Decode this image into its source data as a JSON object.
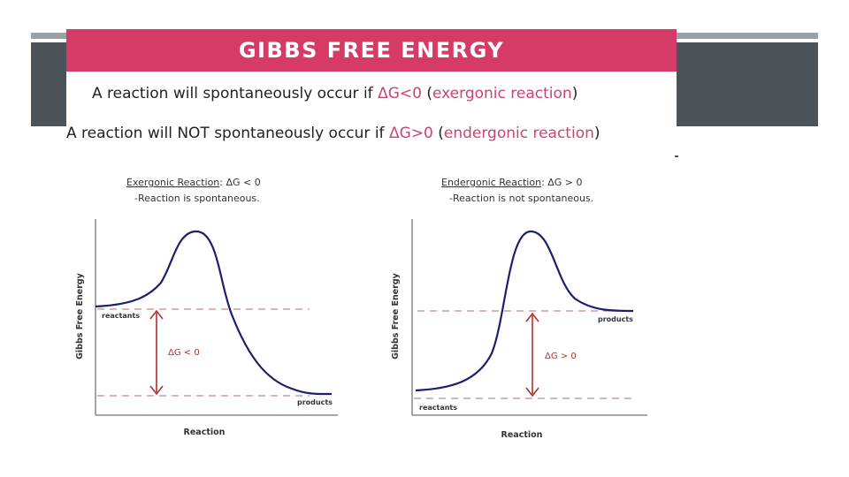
{
  "slide": {
    "title": "GIBBS FREE ENERGY",
    "line1": {
      "pre": "A reaction will spontaneously occur if ",
      "condition": "ΔG<0",
      "open": " (",
      "type": "exergonic reaction",
      "close": ")"
    },
    "line2": {
      "pre": "A reaction will NOT spontaneously occur if ",
      "condition": "ΔG>0",
      "open": " (",
      "type": "endergonic reaction",
      "close": ")"
    },
    "colors": {
      "title_band": "#d63a66",
      "dark_bar": "#4b5258",
      "accent_text": "#c8456f",
      "curve": "#1e1e6e",
      "dashed": "#c88a8a",
      "arrow": "#b03028"
    }
  },
  "diagrams": [
    {
      "heading": "Exergonic Reaction",
      "heading_suffix": ": ΔG < 0",
      "note": "-Reaction is spontaneous.",
      "ylabel": "Gibbs Free Energy",
      "xlabel": "Reaction",
      "reactants_label": "reactants",
      "products_label": "products",
      "delta_label": "ΔG < 0"
    },
    {
      "heading": "Endergonic Reaction",
      "heading_suffix": ": ΔG > 0",
      "note": "-Reaction is not spontaneous.",
      "ylabel": "Gibbs Free Energy",
      "xlabel": "Reaction",
      "reactants_label": "reactants",
      "products_label": "products",
      "delta_label": "ΔG > 0"
    }
  ]
}
